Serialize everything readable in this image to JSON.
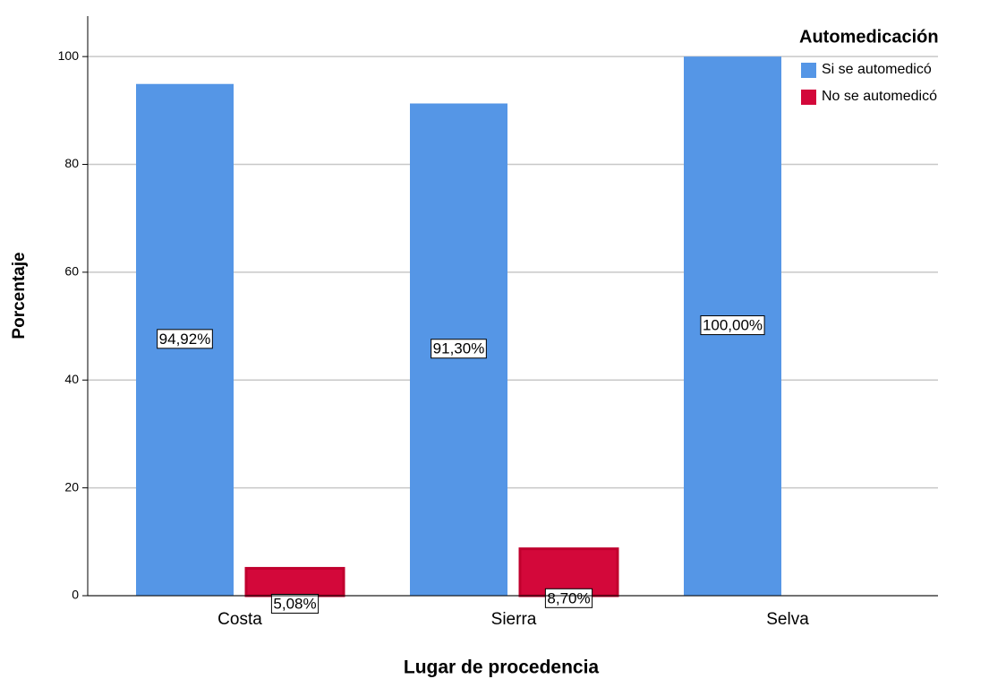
{
  "chart_data": {
    "type": "bar",
    "x_label": "Lugar de procedencia",
    "y_label": "Porcentaje",
    "legend_title": "Automedicación",
    "legend_position": "upper right",
    "categories": [
      "Costa",
      "Sierra",
      "Selva"
    ],
    "series": [
      {
        "name": "Si se automedicó",
        "color": "#5596e6",
        "values": [
          94.92,
          91.3,
          100
        ],
        "value_labels": [
          "94,92%",
          "91,30%",
          "100,00%"
        ]
      },
      {
        "name": "No se automedicó",
        "color": "#d3083a",
        "values": [
          5.08,
          8.7,
          null
        ],
        "value_labels": [
          "5,08%",
          "8,70%",
          null
        ]
      }
    ],
    "ylim": [
      0,
      108
    ],
    "yticks": [
      0,
      20,
      40,
      60,
      80,
      100
    ],
    "grid": true
  }
}
